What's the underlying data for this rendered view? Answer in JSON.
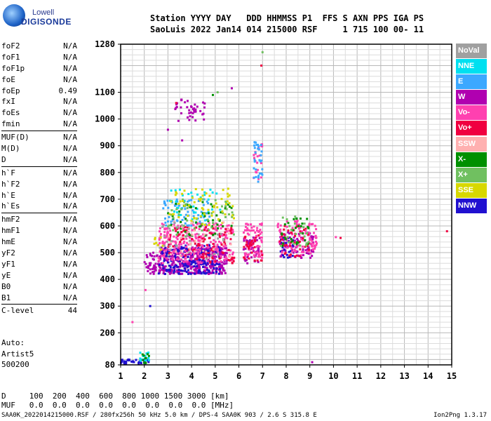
{
  "logo": {
    "line1": "Lowell",
    "line2": "DIGISONDE"
  },
  "header": {
    "line1": "Station YYYY DAY   DDD HHMMSS P1  FFS S AXN PPS IGA PS",
    "line2": "SaoLuis 2022 Jan14 014 215000 RSF     1 715 100 00- 11"
  },
  "params": [
    [
      {
        "name": "foF2",
        "value": "N/A"
      },
      {
        "name": "foF1",
        "value": "N/A"
      },
      {
        "name": "foF1p",
        "value": "N/A"
      },
      {
        "name": "foE",
        "value": "N/A"
      },
      {
        "name": "foEp",
        "value": "0.49"
      },
      {
        "name": "fxI",
        "value": "N/A"
      },
      {
        "name": "foEs",
        "value": "N/A"
      },
      {
        "name": "fmin",
        "value": "N/A"
      }
    ],
    [
      {
        "name": "MUF(D)",
        "value": "N/A"
      },
      {
        "name": "M(D)",
        "value": "N/A"
      },
      {
        "name": "D",
        "value": "N/A"
      }
    ],
    [
      {
        "name": "h`F",
        "value": "N/A"
      },
      {
        "name": "h`F2",
        "value": "N/A"
      },
      {
        "name": "h`E",
        "value": "N/A"
      },
      {
        "name": "h`Es",
        "value": "N/A"
      }
    ],
    [
      {
        "name": "hmF2",
        "value": "N/A"
      },
      {
        "name": "hmF1",
        "value": "N/A"
      },
      {
        "name": "hmE",
        "value": "N/A"
      },
      {
        "name": "yF2",
        "value": "N/A"
      },
      {
        "name": "yF1",
        "value": "N/A"
      },
      {
        "name": "yE",
        "value": "N/A"
      },
      {
        "name": "B0",
        "value": "N/A"
      },
      {
        "name": "B1",
        "value": "N/A"
      }
    ],
    [
      {
        "name": "C-level",
        "value": "44"
      }
    ]
  ],
  "auto": {
    "line1": "Auto:",
    "line2": "Artist5",
    "line3": "500200"
  },
  "legend": [
    {
      "label": "NoVal",
      "color": "#a0a0a0"
    },
    {
      "label": "NNE",
      "color": "#00e0f0"
    },
    {
      "label": "E",
      "color": "#3ca8ff"
    },
    {
      "label": "W",
      "color": "#b000b0"
    },
    {
      "label": "Vo-",
      "color": "#ff40b0"
    },
    {
      "label": "Vo+",
      "color": "#f00040"
    },
    {
      "label": "SSW",
      "color": "#ffb0b0"
    },
    {
      "label": "X-",
      "color": "#009000"
    },
    {
      "label": "X+",
      "color": "#70c060"
    },
    {
      "label": "SSE",
      "color": "#d8d800"
    },
    {
      "label": "NNW",
      "color": "#2010d0"
    }
  ],
  "bottom": {
    "line1": "D     100  200  400  600  800 1000 1500 3000 [km]",
    "line2": "MUF   0.0  0.0  0.0  0.0  0.0  0.0  0.0  0.0 [MHz]"
  },
  "footer": "SAA0K_2022014215000.RSF / 280fx256h 50 kHz 5.0 km / DPS-4 SAA0K 903 / 2.6 S 315.8 E",
  "footer2": "Ion2Png 1.3.17",
  "chart_data": {
    "type": "scatter",
    "xlim": [
      1,
      15
    ],
    "ylim": [
      80,
      1280
    ],
    "xticks": [
      1,
      2,
      3,
      4,
      5,
      6,
      7,
      8,
      9,
      10,
      11,
      12,
      13,
      14,
      15
    ],
    "yticks": [
      80,
      200,
      300,
      400,
      500,
      600,
      700,
      800,
      900,
      1000,
      1100,
      1280
    ],
    "grid": true,
    "series": [
      {
        "name": "W",
        "color": "#b000b0",
        "clusters": [
          {
            "x": [
              2.0,
              2.6
            ],
            "y": [
              420,
              500
            ],
            "n": 40
          },
          {
            "x": [
              2.6,
              5.5
            ],
            "y": [
              420,
              520
            ],
            "n": 420
          },
          {
            "x": [
              3.3,
              4.6
            ],
            "y": [
              990,
              1075
            ],
            "n": 40
          },
          {
            "x": [
              6.2,
              6.9
            ],
            "y": [
              460,
              560
            ],
            "n": 50
          },
          {
            "x": [
              7.7,
              9.2
            ],
            "y": [
              480,
              580
            ],
            "n": 70
          }
        ]
      },
      {
        "name": "NNW",
        "color": "#2010d0",
        "clusters": [
          {
            "x": [
              1.0,
              2.2
            ],
            "y": [
              85,
              100
            ],
            "n": 40
          },
          {
            "x": [
              2.6,
              5.2
            ],
            "y": [
              420,
              530
            ],
            "n": 180
          },
          {
            "x": [
              7.7,
              8.3
            ],
            "y": [
              480,
              560
            ],
            "n": 25
          }
        ]
      },
      {
        "name": "Vo-",
        "color": "#ff40b0",
        "clusters": [
          {
            "x": [
              2.6,
              5.8
            ],
            "y": [
              460,
              610
            ],
            "n": 260
          },
          {
            "x": [
              6.2,
              7.0
            ],
            "y": [
              480,
              610
            ],
            "n": 70
          },
          {
            "x": [
              7.6,
              9.3
            ],
            "y": [
              490,
              620
            ],
            "n": 90
          },
          {
            "x": [
              6.6,
              7.0
            ],
            "y": [
              760,
              910
            ],
            "n": 20
          }
        ]
      },
      {
        "name": "Vo+",
        "color": "#f00040",
        "clusters": [
          {
            "x": [
              3.0,
              5.8
            ],
            "y": [
              460,
              600
            ],
            "n": 100
          },
          {
            "x": [
              6.2,
              7.0
            ],
            "y": [
              470,
              590
            ],
            "n": 30
          },
          {
            "x": [
              7.7,
              9.0
            ],
            "y": [
              480,
              600
            ],
            "n": 40
          }
        ]
      },
      {
        "name": "E",
        "color": "#3ca8ff",
        "clusters": [
          {
            "x": [
              2.8,
              4.8
            ],
            "y": [
              600,
              700
            ],
            "n": 70
          },
          {
            "x": [
              6.6,
              7.0
            ],
            "y": [
              760,
              920
            ],
            "n": 30
          }
        ]
      },
      {
        "name": "NNE",
        "color": "#00e0f0",
        "clusters": [
          {
            "x": [
              3.0,
              5.6
            ],
            "y": [
              620,
              740
            ],
            "n": 40
          },
          {
            "x": [
              1.8,
              2.2
            ],
            "y": [
              90,
              130
            ],
            "n": 12
          }
        ]
      },
      {
        "name": "X-",
        "color": "#009000",
        "clusters": [
          {
            "x": [
              3.0,
              5.8
            ],
            "y": [
              560,
              690
            ],
            "n": 50
          },
          {
            "x": [
              7.7,
              9.0
            ],
            "y": [
              520,
              630
            ],
            "n": 30
          },
          {
            "x": [
              1.9,
              2.2
            ],
            "y": [
              85,
              120
            ],
            "n": 10
          }
        ]
      },
      {
        "name": "X+",
        "color": "#70c060",
        "clusters": [
          {
            "x": [
              3.0,
              5.8
            ],
            "y": [
              560,
              700
            ],
            "n": 40
          },
          {
            "x": [
              7.7,
              9.0
            ],
            "y": [
              520,
              640
            ],
            "n": 20
          }
        ]
      },
      {
        "name": "SSE",
        "color": "#d8d800",
        "clusters": [
          {
            "x": [
              3.0,
              5.8
            ],
            "y": [
              600,
              740
            ],
            "n": 60
          },
          {
            "x": [
              2.4,
              2.8
            ],
            "y": [
              500,
              560
            ],
            "n": 8
          }
        ]
      },
      {
        "name": "SSW",
        "color": "#ffb0b0",
        "clusters": [
          {
            "x": [
              3.0,
              5.8
            ],
            "y": [
              480,
              620
            ],
            "n": 40
          }
        ]
      },
      {
        "name": "NoVal",
        "color": "#a0a0a0",
        "clusters": [
          {
            "x": [
              2.6,
              6.0
            ],
            "y": [
              460,
              620
            ],
            "n": 30
          }
        ]
      }
    ],
    "outliers": [
      {
        "x": 7.0,
        "y": 1250,
        "color": "#70c060"
      },
      {
        "x": 6.95,
        "y": 1200,
        "color": "#f00040"
      },
      {
        "x": 14.8,
        "y": 580,
        "color": "#f00040"
      },
      {
        "x": 10.3,
        "y": 555,
        "color": "#f00040"
      },
      {
        "x": 10.1,
        "y": 558,
        "color": "#ff40b0"
      },
      {
        "x": 9.1,
        "y": 90,
        "color": "#b000b0"
      },
      {
        "x": 2.25,
        "y": 300,
        "color": "#2010d0"
      },
      {
        "x": 1.5,
        "y": 240,
        "color": "#ff40b0"
      },
      {
        "x": 2.05,
        "y": 360,
        "color": "#ff40b0"
      },
      {
        "x": 3.0,
        "y": 960,
        "color": "#b000b0"
      },
      {
        "x": 3.6,
        "y": 920,
        "color": "#b000b0"
      },
      {
        "x": 5.7,
        "y": 1115,
        "color": "#b000b0"
      },
      {
        "x": 5.1,
        "y": 1100,
        "color": "#70c060"
      },
      {
        "x": 3.35,
        "y": 1060,
        "color": "#f00040"
      },
      {
        "x": 4.9,
        "y": 1090,
        "color": "#009000"
      }
    ]
  }
}
